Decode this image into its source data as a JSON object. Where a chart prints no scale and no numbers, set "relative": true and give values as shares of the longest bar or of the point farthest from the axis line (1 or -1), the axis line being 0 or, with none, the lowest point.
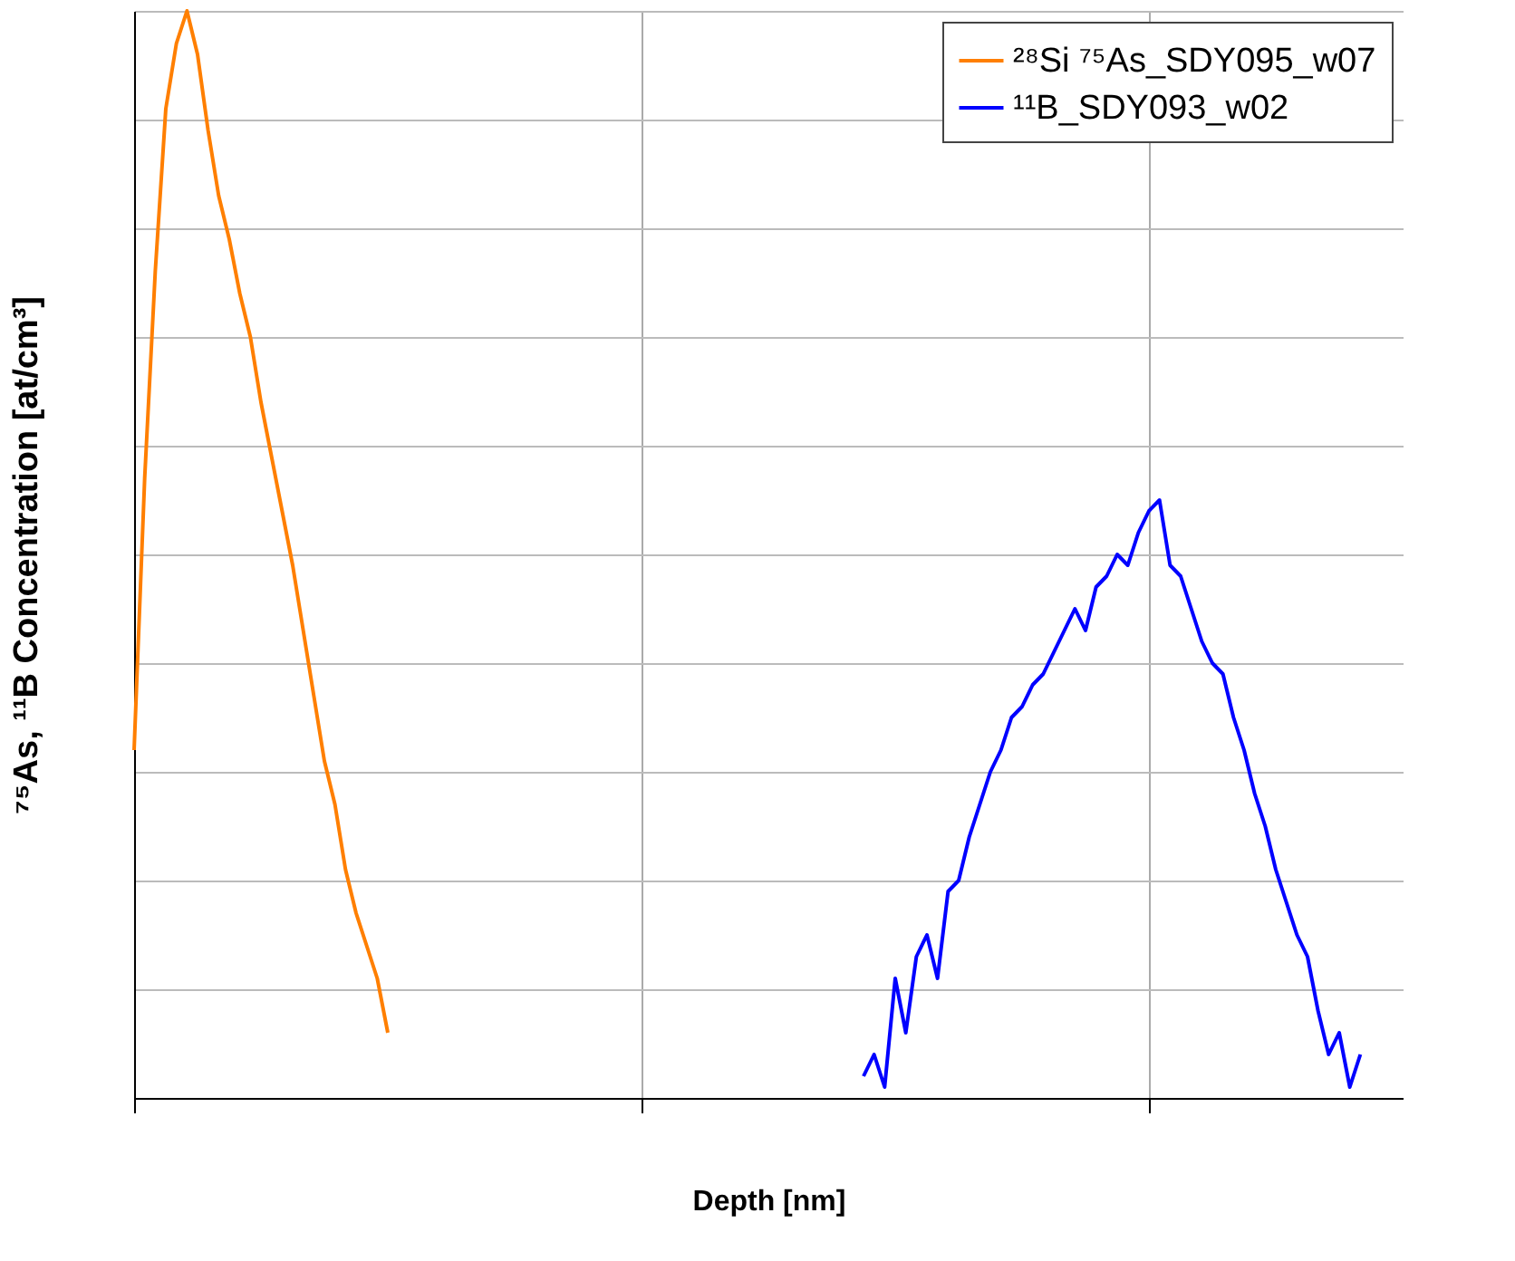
{
  "chart_data": {
    "type": "line",
    "xlabel": "Depth [nm]",
    "ylabel": "⁷⁵As, ¹¹B Concentration [at/cm³]",
    "relative": true,
    "grid": true,
    "legend": "top right",
    "tick_labels": false,
    "marker": "none",
    "line_style": "solid",
    "categories": [
      null,
      null,
      null,
      null,
      null,
      null,
      null,
      null,
      null,
      null,
      null,
      null,
      null,
      null,
      null,
      null,
      null,
      null,
      null,
      null,
      null,
      null,
      null,
      null,
      null,
      null,
      null,
      null,
      null,
      null,
      null,
      null,
      null,
      null,
      null,
      null,
      null,
      null,
      null,
      null,
      null,
      null,
      null,
      null,
      null,
      null,
      null,
      null,
      null,
      null,
      null,
      null,
      null,
      null,
      null,
      null,
      null,
      null,
      null,
      null,
      null,
      null,
      null,
      null,
      null,
      null,
      null,
      null,
      null,
      null,
      null,
      null,
      null,
      null,
      null,
      null,
      null,
      null,
      null,
      null,
      null,
      null,
      null,
      null,
      null,
      null,
      null,
      null,
      null,
      null,
      null,
      null,
      null,
      null,
      null,
      null,
      null,
      null,
      null,
      null,
      null,
      null,
      null,
      null,
      null,
      null,
      null,
      null,
      null,
      null,
      null,
      null,
      null,
      null,
      null,
      null,
      null,
      null,
      null,
      null,
      null
    ],
    "series": [
      {
        "name": "²⁸Si ⁷⁵As_SDY095_w07",
        "color": "#ff7f00",
        "values": [
          0.32,
          0.57,
          0.76,
          0.91,
          0.97,
          1,
          0.96,
          0.89,
          0.83,
          0.79,
          0.74,
          0.7,
          0.64,
          0.59,
          0.54,
          0.49,
          0.43,
          0.37,
          0.31,
          0.27,
          0.21,
          0.17,
          0.14,
          0.11,
          0.06,
          null,
          null,
          null,
          null,
          null,
          null,
          null,
          null,
          null,
          null,
          null,
          null,
          null,
          null,
          null,
          null,
          null,
          null,
          null,
          null,
          null,
          null,
          null,
          null,
          null,
          null,
          null,
          null,
          null,
          null,
          null,
          null,
          null,
          null,
          null,
          null,
          null,
          null,
          null,
          null,
          null,
          null,
          null,
          null,
          null,
          null,
          null,
          null,
          null,
          null,
          null,
          null,
          null,
          null,
          null,
          null,
          null,
          null,
          null,
          null,
          null,
          null,
          null,
          null,
          null,
          null,
          null,
          null,
          null,
          null,
          null,
          null,
          null,
          null,
          null,
          null,
          null,
          null,
          null,
          null,
          null,
          null,
          null,
          null,
          null,
          null,
          null,
          null,
          null,
          null,
          null,
          null,
          null,
          null,
          null,
          null
        ]
      },
      {
        "name": "¹¹B_SDY093_w02",
        "color": "#0000ff",
        "values": [
          null,
          null,
          null,
          null,
          null,
          null,
          null,
          null,
          null,
          null,
          null,
          null,
          null,
          null,
          null,
          null,
          null,
          null,
          null,
          null,
          null,
          null,
          null,
          null,
          null,
          null,
          null,
          null,
          null,
          null,
          null,
          null,
          null,
          null,
          null,
          null,
          null,
          null,
          null,
          null,
          null,
          null,
          null,
          null,
          null,
          null,
          null,
          null,
          null,
          null,
          null,
          null,
          null,
          null,
          null,
          null,
          null,
          null,
          null,
          null,
          null,
          null,
          null,
          null,
          null,
          null,
          null,
          null,
          null,
          0.02,
          0.04,
          0.01,
          0.11,
          0.06,
          0.13,
          0.15,
          0.11,
          0.19,
          0.2,
          0.24,
          0.27,
          0.3,
          0.32,
          0.35,
          0.36,
          0.38,
          0.39,
          0.41,
          0.43,
          0.45,
          0.43,
          0.47,
          0.48,
          0.5,
          0.49,
          0.52,
          0.54,
          0.55,
          0.49,
          0.48,
          0.45,
          0.42,
          0.4,
          0.39,
          0.35,
          0.32,
          0.28,
          0.25,
          0.21,
          0.18,
          0.15,
          0.13,
          0.08,
          0.04,
          0.06,
          0.01,
          0.04,
          null,
          null,
          null,
          null
        ]
      }
    ]
  }
}
